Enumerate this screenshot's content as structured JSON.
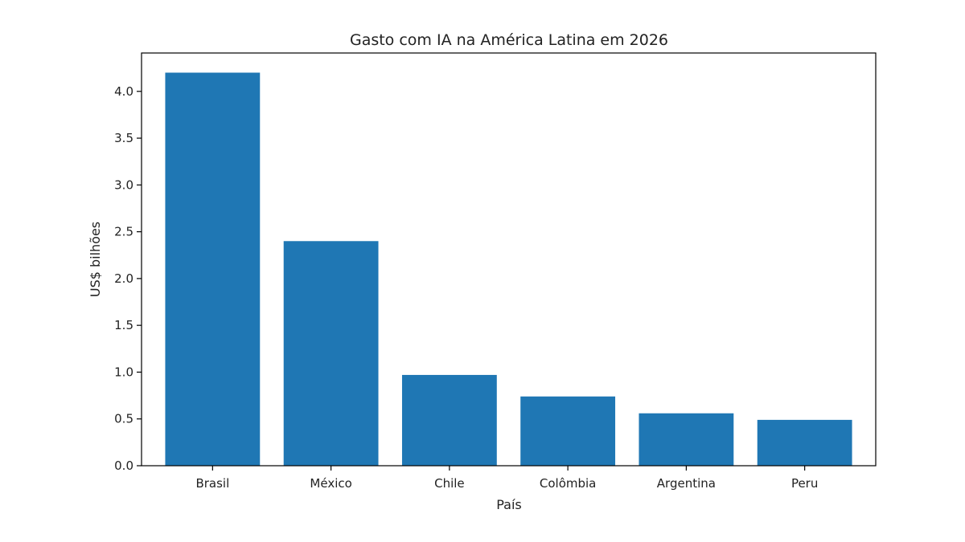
{
  "chart_data": {
    "type": "bar",
    "title": "Gasto com IA na América Latina em 2026",
    "xlabel": "País",
    "ylabel": "US$ bilhões",
    "categories": [
      "Brasil",
      "México",
      "Chile",
      "Colômbia",
      "Argentina",
      "Peru"
    ],
    "values": [
      4.2,
      2.4,
      0.97,
      0.74,
      0.56,
      0.49
    ],
    "ylim": [
      0,
      4.41
    ],
    "yticks": [
      "0.0",
      "0.5",
      "1.0",
      "1.5",
      "2.0",
      "2.5",
      "3.0",
      "3.5",
      "4.0"
    ],
    "grid": false,
    "bar_color": "#1f77b4"
  }
}
